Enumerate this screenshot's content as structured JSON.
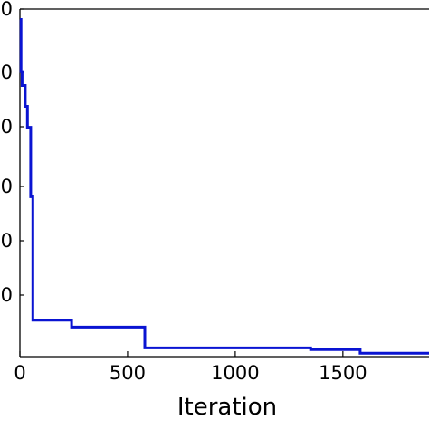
{
  "chart_data": {
    "type": "line",
    "xlabel": "Iteration",
    "ylabel": "",
    "xlim": [
      0,
      1900
    ],
    "x_ticks": [
      0,
      500,
      1000,
      1500
    ],
    "x_tick_labels": [
      "0",
      "500",
      "1000",
      "1500"
    ],
    "y_tick_labels": [
      "0",
      "0",
      "0",
      "0",
      "0",
      "0"
    ],
    "grid": false,
    "legend": "none",
    "series": [
      {
        "color": "#0a14d2",
        "step": true,
        "x": [
          0,
          5,
          10,
          25,
          35,
          50,
          60,
          240,
          580,
          1350,
          1580,
          1900
        ],
        "y": [
          0.97,
          0.82,
          0.78,
          0.72,
          0.66,
          0.46,
          0.105,
          0.085,
          0.025,
          0.02,
          0.01,
          0.01
        ]
      }
    ]
  }
}
